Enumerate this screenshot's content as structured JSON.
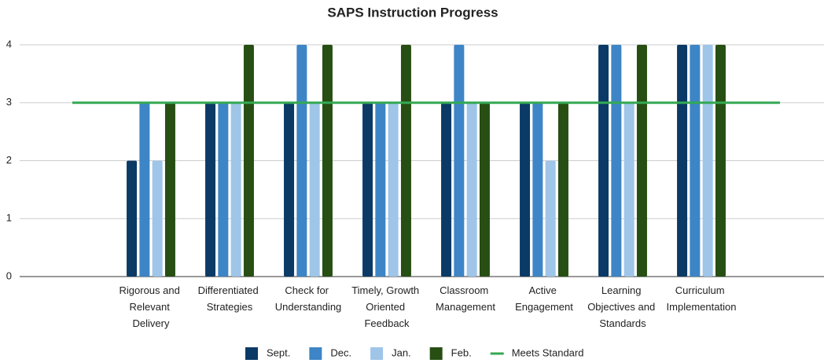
{
  "chart_data": {
    "type": "bar",
    "title": "SAPS Instruction Progress",
    "categories": [
      null,
      "Rigorous and Relevant Delivery",
      "Differentiated Strategies",
      "Check for Understanding",
      "Timely, Growth Oriented Feedback",
      "Classroom Management",
      "Active Engagement",
      "Learning Objectives and Standards",
      "Curriculum Implementation",
      null
    ],
    "series": [
      {
        "name": "Sept.",
        "color": "#0b3a66",
        "values": [
          null,
          2,
          3,
          3,
          3,
          3,
          3,
          4,
          4,
          null
        ]
      },
      {
        "name": "Dec.",
        "color": "#3d85c6",
        "values": [
          null,
          3,
          3,
          4,
          3,
          4,
          3,
          4,
          4,
          null
        ]
      },
      {
        "name": "Jan.",
        "color": "#9fc5e8",
        "values": [
          null,
          2,
          3,
          3,
          3,
          3,
          2,
          3,
          4,
          null
        ]
      },
      {
        "name": "Feb.",
        "color": "#274e13",
        "values": [
          null,
          3,
          4,
          4,
          4,
          3,
          3,
          4,
          4,
          null
        ]
      },
      {
        "name": "Meets Standard",
        "color": "#34a853",
        "type": "line",
        "values": [
          3,
          3,
          3,
          3,
          3,
          3,
          3,
          3,
          3,
          3
        ]
      }
    ],
    "ylim": [
      0,
      4
    ],
    "yticks": [
      0,
      1,
      2,
      3,
      4
    ],
    "grid": true,
    "legend": "bottom"
  }
}
